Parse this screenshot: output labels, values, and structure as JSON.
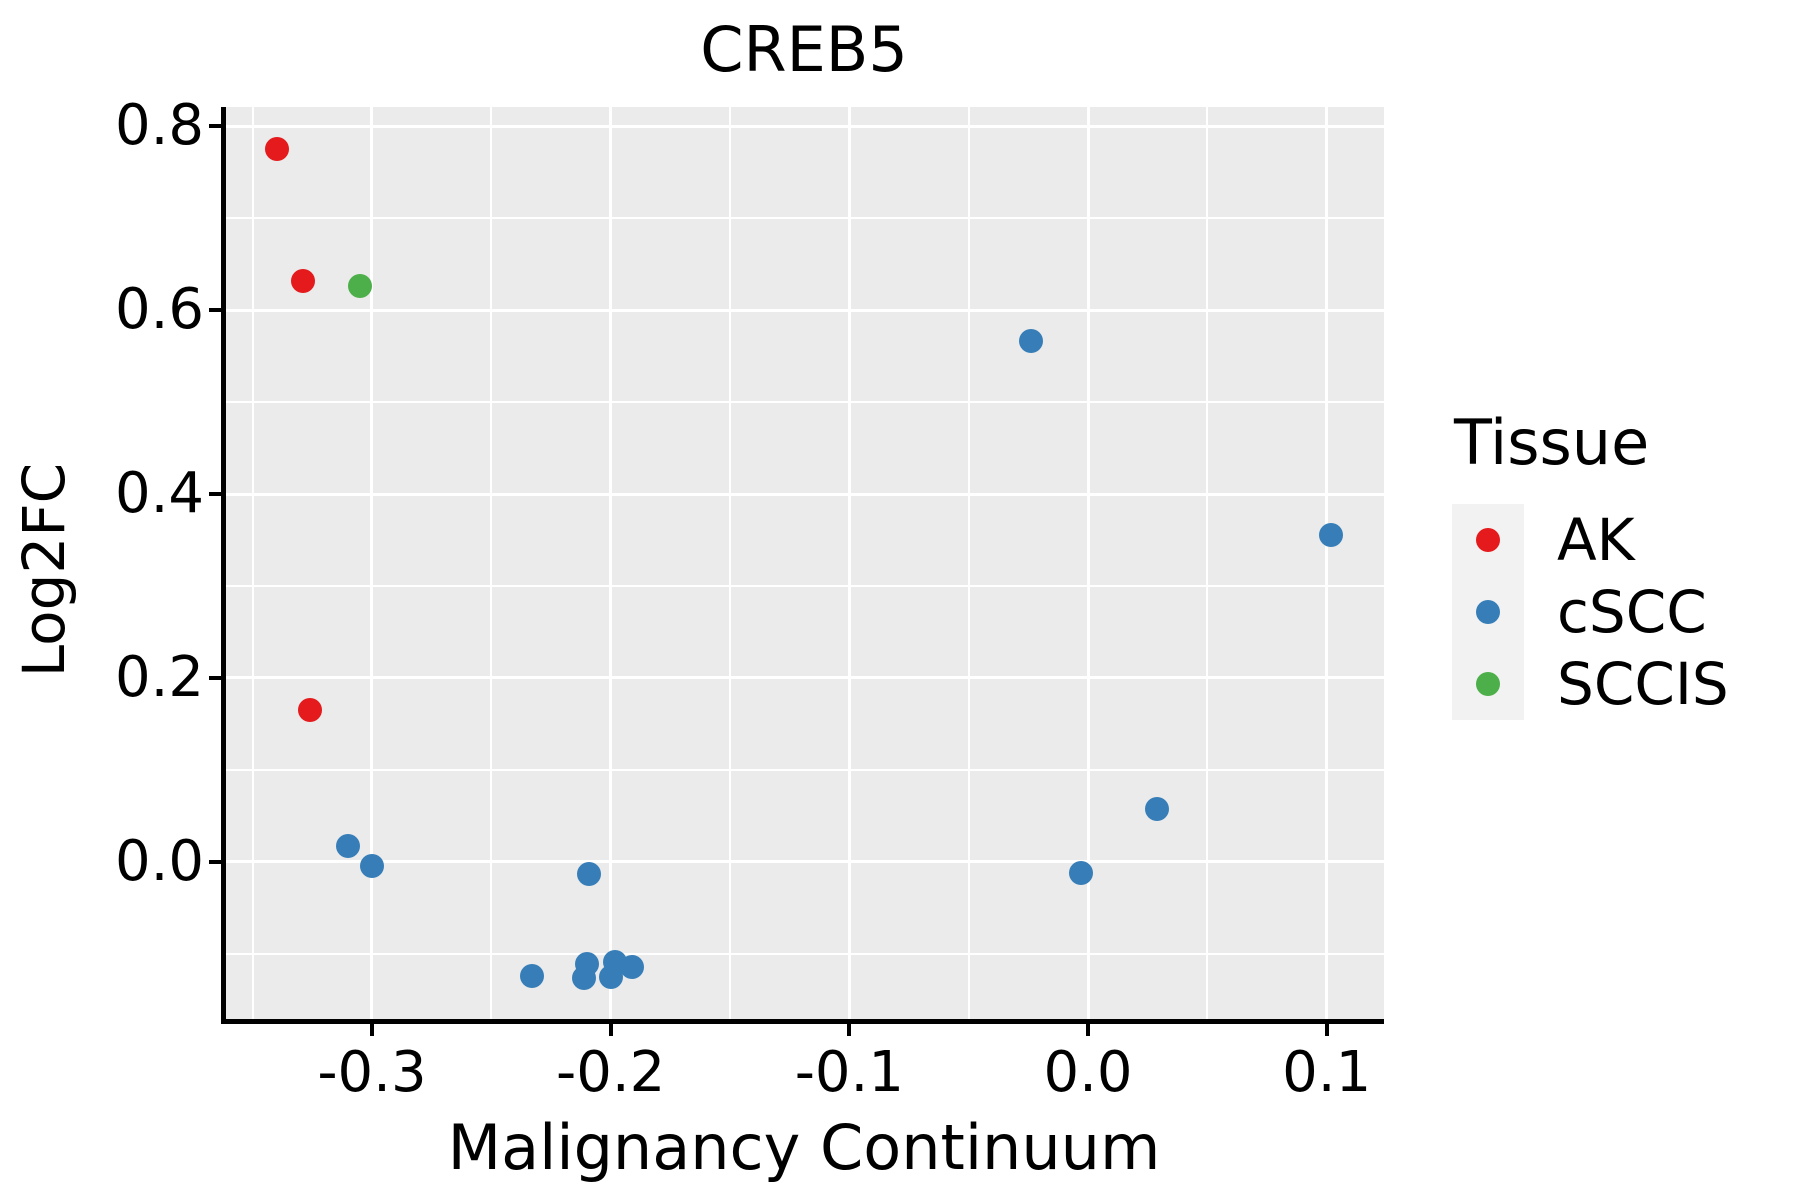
{
  "title": "CREB5",
  "axes": {
    "x": {
      "label": "Malignancy Continuum",
      "ticks": [
        -0.3,
        -0.2,
        -0.1,
        0.0,
        0.1
      ],
      "tick_labels": [
        "-0.3",
        "-0.2",
        "-0.1",
        "0.0",
        "0.1"
      ],
      "minor_ticks": [
        -0.35,
        -0.25,
        -0.15,
        -0.05,
        0.05
      ]
    },
    "y": {
      "label": "Log2FC",
      "ticks": [
        0.8,
        0.6,
        0.4,
        0.2,
        0.0
      ],
      "tick_labels": [
        "0.8",
        "0.6",
        "0.4",
        "0.2",
        "0.0"
      ],
      "minor_ticks": [
        0.7,
        0.5,
        0.3,
        0.1,
        -0.1
      ]
    }
  },
  "legend": {
    "title": "Tissue",
    "entries": [
      "AK",
      "cSCC",
      "SCCIS"
    ]
  },
  "colors": {
    "ak": "#E41A1C",
    "cscc": "#377EB8",
    "sccis": "#4DAF4A",
    "panel_background": "#EBEBEB",
    "gridline": "#FFFFFF",
    "axis": "#000000"
  },
  "chart_data": {
    "type": "scatter",
    "title": "CREB5",
    "xlabel": "Malignancy Continuum",
    "ylabel": "Log2FC",
    "xlim": [
      -0.362,
      0.124
    ],
    "ylim": [
      -0.171,
      0.821
    ],
    "grid": "on",
    "legend_title": "Tissue",
    "legend_position": "right",
    "series": [
      {
        "name": "AK",
        "color": "#E41A1C",
        "points": [
          [
            -0.34,
            0.775
          ],
          [
            -0.329,
            0.632
          ],
          [
            -0.326,
            0.165
          ]
        ]
      },
      {
        "name": "cSCC",
        "color": "#377EB8",
        "points": [
          [
            -0.31,
            0.017
          ],
          [
            -0.3,
            -0.005
          ],
          [
            -0.209,
            -0.013
          ],
          [
            -0.233,
            -0.124
          ],
          [
            -0.211,
            -0.126
          ],
          [
            -0.21,
            -0.111
          ],
          [
            -0.2,
            -0.125
          ],
          [
            -0.198,
            -0.109
          ],
          [
            -0.191,
            -0.114
          ],
          [
            -0.024,
            0.566
          ],
          [
            0.102,
            0.355
          ],
          [
            0.029,
            0.057
          ],
          [
            -0.003,
            -0.012
          ]
        ]
      },
      {
        "name": "SCCIS",
        "color": "#4DAF4A",
        "points": [
          [
            -0.305,
            0.626
          ]
        ]
      }
    ]
  }
}
